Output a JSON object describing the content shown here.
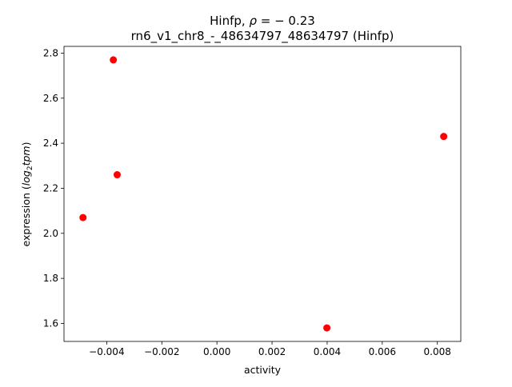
{
  "chart_data": {
    "type": "scatter",
    "title_prefix": "Hinfp, ",
    "title_rho_symbol": "ρ",
    "title_rho_rest": " = − 0.23",
    "subtitle": "rn6_v1_chr8_-_48634797_48634797 (Hinfp)",
    "xlabel": "activity",
    "ylabel_prefix": "expression (",
    "ylabel_math_a": "log",
    "ylabel_sub": "2",
    "ylabel_math_b": "tpm",
    "ylabel_suffix": ")",
    "xlim": [
      -0.00555,
      0.00885
    ],
    "ylim": [
      1.52,
      2.83
    ],
    "xticks": [
      {
        "value": -0.004,
        "label": "−0.004"
      },
      {
        "value": -0.002,
        "label": "−0.002"
      },
      {
        "value": 0.0,
        "label": "0.000"
      },
      {
        "value": 0.002,
        "label": "0.002"
      },
      {
        "value": 0.004,
        "label": "0.004"
      },
      {
        "value": 0.006,
        "label": "0.006"
      },
      {
        "value": 0.008,
        "label": "0.008"
      }
    ],
    "yticks": [
      {
        "value": 1.6,
        "label": "1.6"
      },
      {
        "value": 1.8,
        "label": "1.8"
      },
      {
        "value": 2.0,
        "label": "2.0"
      },
      {
        "value": 2.2,
        "label": "2.2"
      },
      {
        "value": 2.4,
        "label": "2.4"
      },
      {
        "value": 2.6,
        "label": "2.6"
      },
      {
        "value": 2.8,
        "label": "2.8"
      }
    ],
    "series": [
      {
        "color": "#ff0000",
        "points": [
          {
            "x": -0.00486,
            "y": 2.07
          },
          {
            "x": -0.00376,
            "y": 2.77
          },
          {
            "x": -0.00362,
            "y": 2.26
          },
          {
            "x": 0.00399,
            "y": 1.58
          },
          {
            "x": 0.00823,
            "y": 2.43
          }
        ]
      }
    ],
    "grid": false,
    "legend": "none"
  }
}
